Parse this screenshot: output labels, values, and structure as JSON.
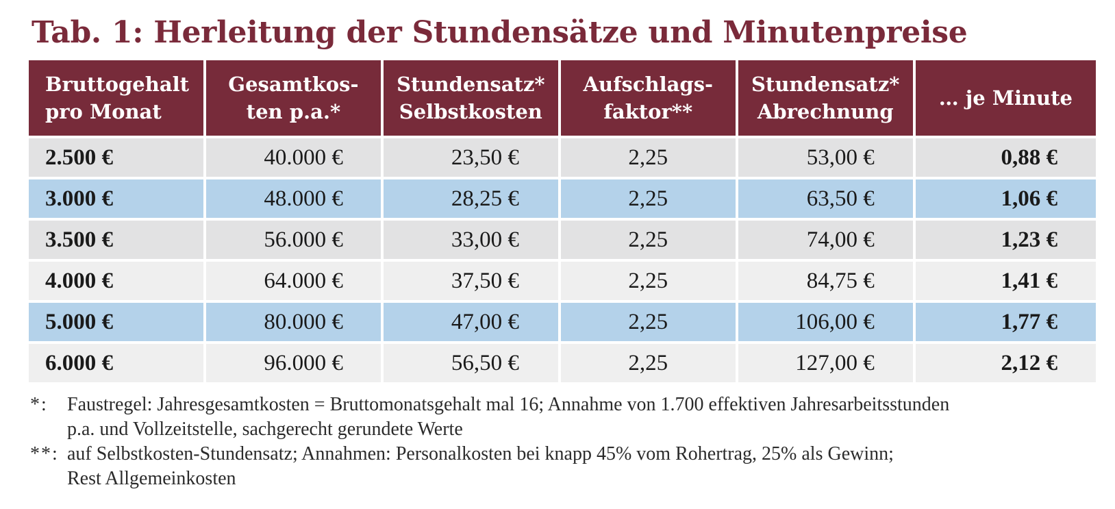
{
  "title": "Tab. 1: Herleitung der Stundensätze und Minutenpreise",
  "table": {
    "headers": [
      {
        "line1": "Bruttogehalt",
        "line2": "pro Monat"
      },
      {
        "line1": "Gesamtkos-",
        "line2": "ten p.a.*"
      },
      {
        "line1": "Stundensatz*",
        "line2": "Selbstkosten"
      },
      {
        "line1": "Aufschlags-",
        "line2": "faktor**"
      },
      {
        "line1": "Stundensatz*",
        "line2": "Abrechnung"
      },
      {
        "line1": "… je Minute",
        "line2": ""
      }
    ],
    "rows": [
      [
        "2.500 €",
        "40.000 €",
        "23,50 €",
        "2,25",
        "53,00 €",
        "0,88 €"
      ],
      [
        "3.000 €",
        "48.000 €",
        "28,25 €",
        "2,25",
        "63,50 €",
        "1,06 €"
      ],
      [
        "3.500 €",
        "56.000 €",
        "33,00 €",
        "2,25",
        "74,00 €",
        "1,23 €"
      ],
      [
        "4.000 €",
        "64.000 €",
        "37,50 €",
        "2,25",
        "84,75 €",
        "1,41 €"
      ],
      [
        "5.000 €",
        "80.000 €",
        "47,00 €",
        "2,25",
        "106,00 €",
        "1,77 €"
      ],
      [
        "6.000 €",
        "96.000 €",
        "56,50 €",
        "2,25",
        "127,00 €",
        "2,12 €"
      ]
    ]
  },
  "notes": [
    {
      "marker": "*:",
      "line1": "Faustregel: Jahresgesamtkosten = Bruttomonatsgehalt mal 16; Annahme von 1.700 effektiven Jahresarbeitsstunden",
      "line2": "p.a. und Vollzeitstelle, sachgerecht gerundete Werte"
    },
    {
      "marker": "**:",
      "line1": "auf Selbstkosten-Stundensatz; Annahmen: Personalkosten bei knapp 45% vom Rohertrag, 25% als Gewinn;",
      "line2": "Rest Allgemeinkosten"
    }
  ],
  "colors": {
    "title": "#7a2a3a",
    "header_bg": "#772b3a",
    "row_grey": "#e2e2e3",
    "row_blue": "#b4d2ea",
    "row_light": "#efefef"
  }
}
